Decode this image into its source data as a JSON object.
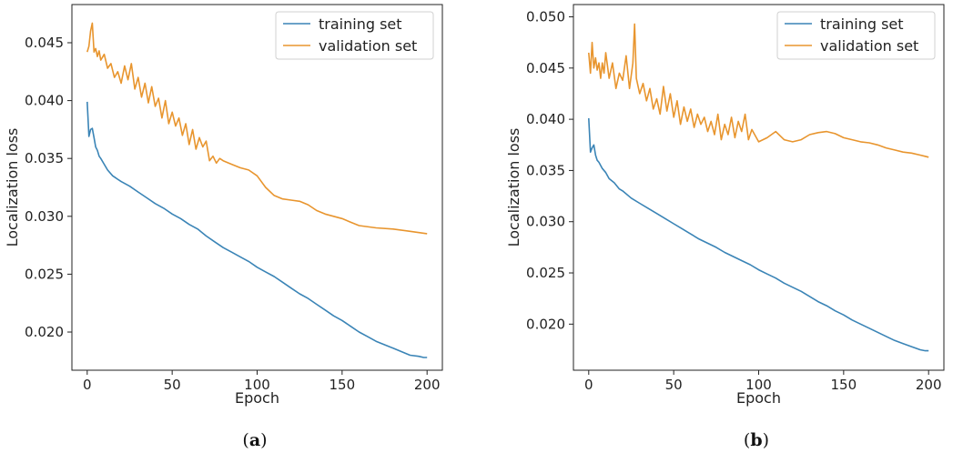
{
  "chart_data": [
    {
      "type": "line",
      "panel_label": "(a)",
      "xlabel": "Epoch",
      "ylabel": "Localization loss",
      "xlim": [
        -9,
        209
      ],
      "ylim": [
        0.0167,
        0.0483
      ],
      "xticks": [
        0,
        50,
        100,
        150,
        200
      ],
      "xtick_labels": [
        "0",
        "50",
        "100",
        "150",
        "200"
      ],
      "yticks": [
        0.02,
        0.025,
        0.03,
        0.035,
        0.04,
        0.045
      ],
      "ytick_labels": [
        "0.020",
        "0.025",
        "0.030",
        "0.035",
        "0.040",
        "0.045"
      ],
      "grid": false,
      "legend_position": "upper-right",
      "series": [
        {
          "name": "training set",
          "color": "#3a84b6",
          "x": [
            0,
            1,
            2,
            3,
            4,
            5,
            6,
            7,
            8,
            10,
            12,
            15,
            18,
            20,
            25,
            30,
            35,
            40,
            45,
            50,
            55,
            60,
            65,
            70,
            75,
            80,
            85,
            90,
            95,
            100,
            105,
            110,
            115,
            120,
            125,
            130,
            135,
            140,
            145,
            150,
            155,
            160,
            165,
            170,
            175,
            180,
            185,
            190,
            195,
            198,
            200
          ],
          "y": [
            0.0399,
            0.0369,
            0.0375,
            0.0376,
            0.0368,
            0.036,
            0.0357,
            0.0352,
            0.035,
            0.0345,
            0.034,
            0.0335,
            0.0332,
            0.033,
            0.0326,
            0.0321,
            0.0316,
            0.0311,
            0.0307,
            0.0302,
            0.0298,
            0.0293,
            0.0289,
            0.0283,
            0.0278,
            0.0273,
            0.0269,
            0.0265,
            0.0261,
            0.0256,
            0.0252,
            0.0248,
            0.0243,
            0.0238,
            0.0233,
            0.0229,
            0.0224,
            0.0219,
            0.0214,
            0.021,
            0.0205,
            0.02,
            0.0196,
            0.0192,
            0.0189,
            0.0186,
            0.0183,
            0.018,
            0.0179,
            0.0178,
            0.0178
          ]
        },
        {
          "name": "validation set",
          "color": "#e8952e",
          "x": [
            0,
            1,
            2,
            3,
            4,
            5,
            6,
            7,
            8,
            10,
            12,
            14,
            16,
            18,
            20,
            22,
            24,
            26,
            28,
            30,
            32,
            34,
            36,
            38,
            40,
            42,
            44,
            46,
            48,
            50,
            52,
            54,
            56,
            58,
            60,
            62,
            64,
            66,
            68,
            70,
            72,
            74,
            76,
            78,
            80,
            85,
            90,
            95,
            100,
            105,
            110,
            115,
            120,
            125,
            130,
            135,
            140,
            145,
            150,
            155,
            160,
            170,
            180,
            190,
            200
          ],
          "y": [
            0.0442,
            0.0447,
            0.046,
            0.0467,
            0.0442,
            0.0445,
            0.0438,
            0.0443,
            0.0435,
            0.044,
            0.0428,
            0.0432,
            0.042,
            0.0425,
            0.0415,
            0.043,
            0.0418,
            0.0432,
            0.041,
            0.042,
            0.0403,
            0.0415,
            0.0398,
            0.0412,
            0.0395,
            0.0402,
            0.0385,
            0.04,
            0.038,
            0.039,
            0.0378,
            0.0385,
            0.037,
            0.038,
            0.0362,
            0.0375,
            0.0358,
            0.0368,
            0.036,
            0.0365,
            0.0348,
            0.0352,
            0.0346,
            0.035,
            0.0348,
            0.0345,
            0.0342,
            0.034,
            0.0335,
            0.0325,
            0.0318,
            0.0315,
            0.0314,
            0.0313,
            0.031,
            0.0305,
            0.0302,
            0.03,
            0.0298,
            0.0295,
            0.0292,
            0.029,
            0.0289,
            0.0287,
            0.0285
          ]
        }
      ]
    },
    {
      "type": "line",
      "panel_label": "(b)",
      "xlabel": "Epoch",
      "ylabel": "Localization loss",
      "xlim": [
        -9,
        209
      ],
      "ylim": [
        0.0155,
        0.0512
      ],
      "xticks": [
        0,
        50,
        100,
        150,
        200
      ],
      "xtick_labels": [
        "0",
        "50",
        "100",
        "150",
        "200"
      ],
      "yticks": [
        0.02,
        0.025,
        0.03,
        0.035,
        0.04,
        0.045,
        0.05
      ],
      "ytick_labels": [
        "0.020",
        "0.025",
        "0.030",
        "0.035",
        "0.040",
        "0.045",
        "0.050"
      ],
      "grid": false,
      "legend_position": "upper-right",
      "series": [
        {
          "name": "training set",
          "color": "#3a84b6",
          "x": [
            0,
            1,
            2,
            3,
            4,
            5,
            6,
            8,
            10,
            12,
            15,
            18,
            20,
            25,
            30,
            35,
            40,
            45,
            50,
            55,
            60,
            65,
            70,
            75,
            80,
            85,
            90,
            95,
            100,
            105,
            110,
            115,
            120,
            125,
            130,
            135,
            140,
            145,
            150,
            155,
            160,
            165,
            170,
            175,
            180,
            185,
            190,
            195,
            198,
            200
          ],
          "y": [
            0.0401,
            0.0368,
            0.0372,
            0.0375,
            0.0365,
            0.036,
            0.0358,
            0.0352,
            0.0348,
            0.0342,
            0.0338,
            0.0332,
            0.033,
            0.0323,
            0.0318,
            0.0313,
            0.0308,
            0.0303,
            0.0298,
            0.0293,
            0.0288,
            0.0283,
            0.0279,
            0.0275,
            0.027,
            0.0266,
            0.0262,
            0.0258,
            0.0253,
            0.0249,
            0.0245,
            0.024,
            0.0236,
            0.0232,
            0.0227,
            0.0222,
            0.0218,
            0.0213,
            0.0209,
            0.0204,
            0.02,
            0.0196,
            0.0192,
            0.0188,
            0.0184,
            0.0181,
            0.0178,
            0.0175,
            0.0174,
            0.0174
          ]
        },
        {
          "name": "validation set",
          "color": "#e8952e",
          "x": [
            0,
            1,
            2,
            3,
            4,
            5,
            6,
            7,
            8,
            9,
            10,
            12,
            14,
            16,
            18,
            20,
            22,
            24,
            26,
            27,
            28,
            30,
            32,
            34,
            36,
            38,
            40,
            42,
            44,
            46,
            48,
            50,
            52,
            54,
            56,
            58,
            60,
            62,
            64,
            66,
            68,
            70,
            72,
            74,
            76,
            78,
            80,
            82,
            84,
            86,
            88,
            90,
            92,
            94,
            96,
            100,
            105,
            110,
            115,
            120,
            125,
            130,
            135,
            140,
            145,
            150,
            155,
            160,
            165,
            170,
            175,
            180,
            185,
            190,
            195,
            200
          ],
          "y": [
            0.0465,
            0.0445,
            0.0475,
            0.045,
            0.046,
            0.0448,
            0.0455,
            0.044,
            0.0455,
            0.0445,
            0.0465,
            0.044,
            0.0455,
            0.043,
            0.0445,
            0.0438,
            0.0462,
            0.043,
            0.0455,
            0.0493,
            0.044,
            0.0425,
            0.0435,
            0.0418,
            0.043,
            0.041,
            0.042,
            0.0405,
            0.0432,
            0.0408,
            0.0425,
            0.0402,
            0.0418,
            0.0395,
            0.0412,
            0.0398,
            0.041,
            0.0392,
            0.0405,
            0.0395,
            0.0402,
            0.0388,
            0.0398,
            0.0385,
            0.0405,
            0.038,
            0.0395,
            0.0385,
            0.0402,
            0.0382,
            0.0398,
            0.0388,
            0.0405,
            0.038,
            0.039,
            0.0378,
            0.0382,
            0.0388,
            0.038,
            0.0378,
            0.038,
            0.0385,
            0.0387,
            0.0388,
            0.0386,
            0.0382,
            0.038,
            0.0378,
            0.0377,
            0.0375,
            0.0372,
            0.037,
            0.0368,
            0.0367,
            0.0365,
            0.0363
          ]
        }
      ]
    }
  ]
}
